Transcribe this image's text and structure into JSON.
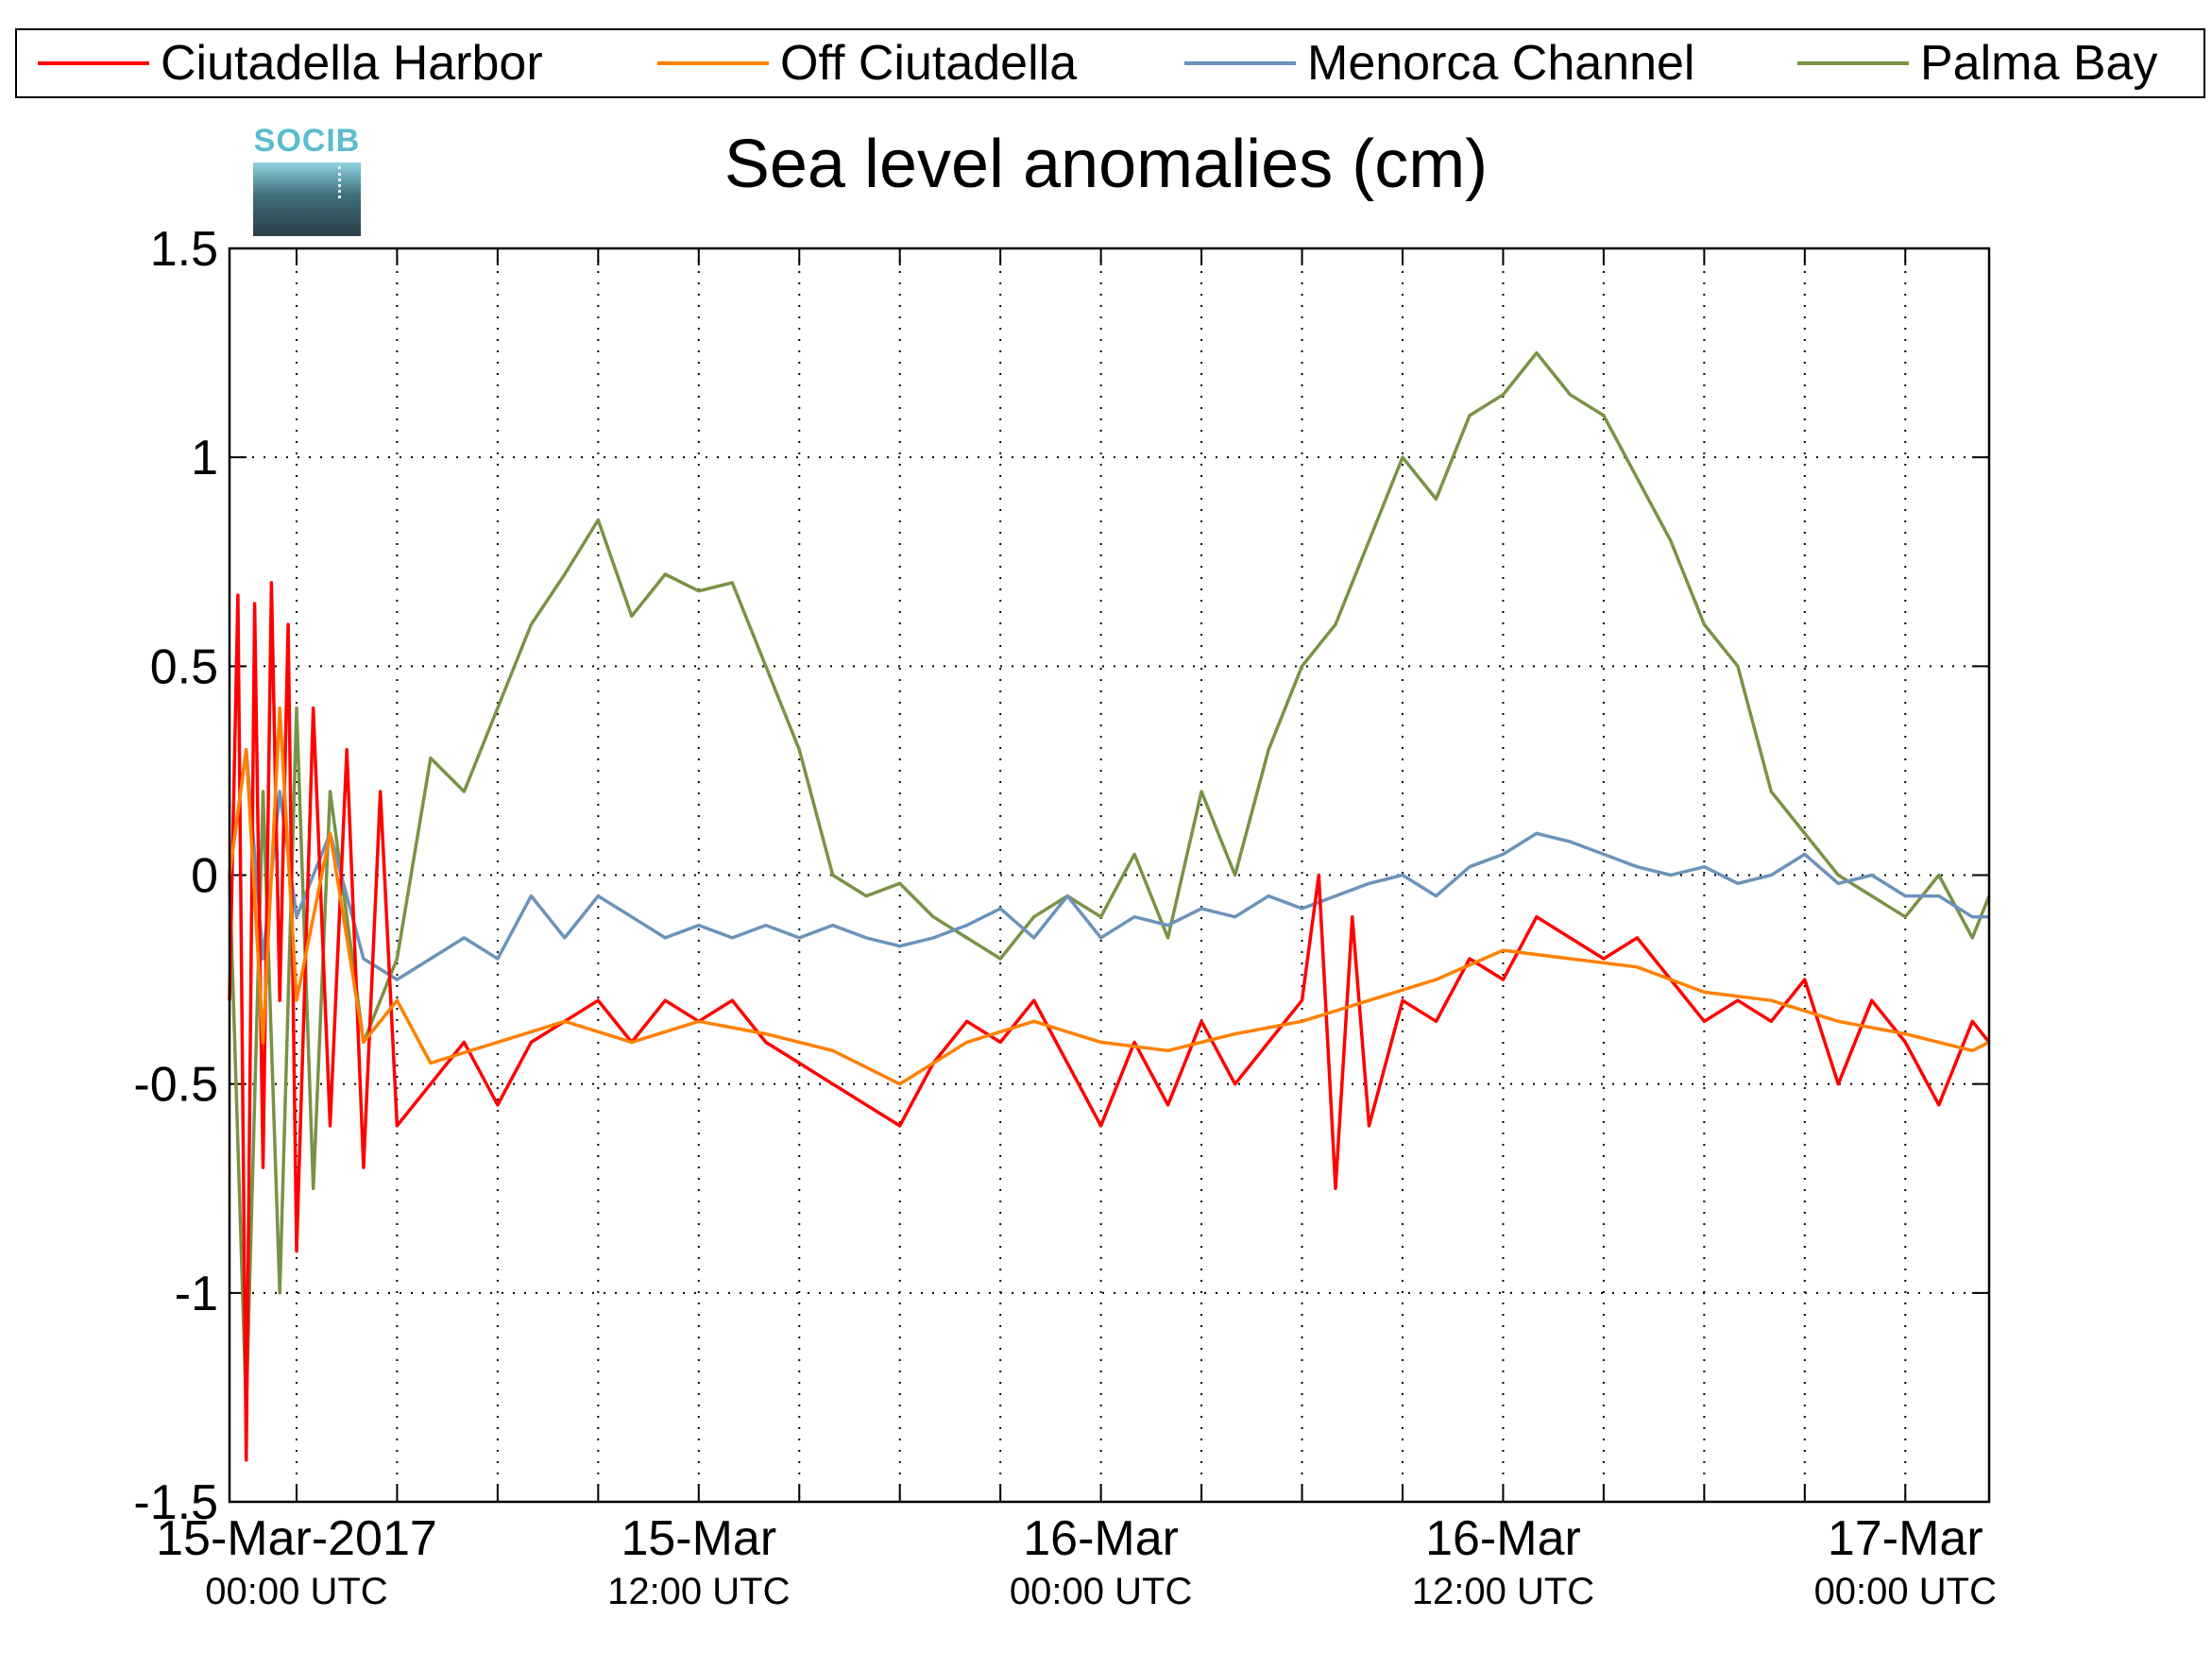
{
  "chart_data": {
    "type": "line",
    "title": "Sea level anomalies (cm)",
    "logo_text": "SOCIB",
    "ylim": [
      -1.5,
      1.5
    ],
    "y_ticks": [
      "1.5",
      "1",
      "0.5",
      "0",
      "-0.5",
      "-1",
      "-1.5"
    ],
    "x_range": [
      "2017-03-14T22:00",
      "2017-03-17T02:30"
    ],
    "x_ticks": [
      {
        "main": "15-Mar-2017",
        "sub": "00:00 UTC"
      },
      {
        "main": "15-Mar",
        "sub": "12:00 UTC"
      },
      {
        "main": "16-Mar",
        "sub": "00:00 UTC"
      },
      {
        "main": "16-Mar",
        "sub": "12:00 UTC"
      },
      {
        "main": "17-Mar",
        "sub": "00:00 UTC"
      }
    ],
    "grid": true,
    "legend_position": "top",
    "series": [
      {
        "name": "Ciutadella Harbor",
        "color": "#ff0000",
        "x": [
          "2017-03-14T22:00",
          "2017-03-14T22:15",
          "2017-03-14T22:30",
          "2017-03-14T22:45",
          "2017-03-14T23:00",
          "2017-03-14T23:15",
          "2017-03-14T23:30",
          "2017-03-14T23:45",
          "2017-03-15T00:00",
          "2017-03-15T00:30",
          "2017-03-15T01:00",
          "2017-03-15T01:30",
          "2017-03-15T02:00",
          "2017-03-15T02:30",
          "2017-03-15T03:00",
          "2017-03-15T04:00",
          "2017-03-15T05:00",
          "2017-03-15T06:00",
          "2017-03-15T07:00",
          "2017-03-15T08:00",
          "2017-03-15T09:00",
          "2017-03-15T10:00",
          "2017-03-15T11:00",
          "2017-03-15T12:00",
          "2017-03-15T13:00",
          "2017-03-15T14:00",
          "2017-03-15T15:00",
          "2017-03-15T16:00",
          "2017-03-15T17:00",
          "2017-03-15T18:00",
          "2017-03-15T19:00",
          "2017-03-15T20:00",
          "2017-03-15T21:00",
          "2017-03-15T22:00",
          "2017-03-15T23:00",
          "2017-03-16T00:00",
          "2017-03-16T01:00",
          "2017-03-16T02:00",
          "2017-03-16T03:00",
          "2017-03-16T04:00",
          "2017-03-16T05:00",
          "2017-03-16T06:00",
          "2017-03-16T06:30",
          "2017-03-16T07:00",
          "2017-03-16T07:30",
          "2017-03-16T08:00",
          "2017-03-16T09:00",
          "2017-03-16T10:00",
          "2017-03-16T11:00",
          "2017-03-16T12:00",
          "2017-03-16T13:00",
          "2017-03-16T14:00",
          "2017-03-16T15:00",
          "2017-03-16T16:00",
          "2017-03-16T17:00",
          "2017-03-16T18:00",
          "2017-03-16T19:00",
          "2017-03-16T20:00",
          "2017-03-16T21:00",
          "2017-03-16T22:00",
          "2017-03-16T23:00",
          "2017-03-17T00:00",
          "2017-03-17T01:00",
          "2017-03-17T02:00",
          "2017-03-17T02:30"
        ],
        "values": [
          -0.3,
          0.67,
          -1.4,
          0.65,
          -0.7,
          0.7,
          -0.3,
          0.6,
          -0.9,
          0.4,
          -0.6,
          0.3,
          -0.7,
          0.2,
          -0.6,
          -0.5,
          -0.4,
          -0.55,
          -0.4,
          -0.35,
          -0.3,
          -0.4,
          -0.3,
          -0.35,
          -0.3,
          -0.4,
          -0.45,
          -0.5,
          -0.55,
          -0.6,
          -0.45,
          -0.35,
          -0.4,
          -0.3,
          -0.45,
          -0.6,
          -0.4,
          -0.55,
          -0.35,
          -0.5,
          -0.4,
          -0.3,
          0.0,
          -0.75,
          -0.1,
          -0.6,
          -0.3,
          -0.35,
          -0.2,
          -0.25,
          -0.1,
          -0.15,
          -0.2,
          -0.15,
          -0.25,
          -0.35,
          -0.3,
          -0.35,
          -0.25,
          -0.5,
          -0.3,
          -0.4,
          -0.55,
          -0.35,
          -0.4
        ]
      },
      {
        "name": "Off Ciutadella",
        "color": "#ff8000",
        "x": [
          "2017-03-14T22:00",
          "2017-03-14T22:30",
          "2017-03-14T23:00",
          "2017-03-14T23:30",
          "2017-03-15T00:00",
          "2017-03-15T01:00",
          "2017-03-15T02:00",
          "2017-03-15T03:00",
          "2017-03-15T04:00",
          "2017-03-15T06:00",
          "2017-03-15T08:00",
          "2017-03-15T10:00",
          "2017-03-15T12:00",
          "2017-03-15T14:00",
          "2017-03-15T16:00",
          "2017-03-15T18:00",
          "2017-03-15T20:00",
          "2017-03-15T22:00",
          "2017-03-16T00:00",
          "2017-03-16T02:00",
          "2017-03-16T04:00",
          "2017-03-16T06:00",
          "2017-03-16T08:00",
          "2017-03-16T10:00",
          "2017-03-16T12:00",
          "2017-03-16T14:00",
          "2017-03-16T16:00",
          "2017-03-16T18:00",
          "2017-03-16T20:00",
          "2017-03-16T22:00",
          "2017-03-17T00:00",
          "2017-03-17T02:00",
          "2017-03-17T02:30"
        ],
        "values": [
          0.0,
          0.3,
          -0.4,
          0.4,
          -0.3,
          0.1,
          -0.4,
          -0.3,
          -0.45,
          -0.4,
          -0.35,
          -0.4,
          -0.35,
          -0.38,
          -0.42,
          -0.5,
          -0.4,
          -0.35,
          -0.4,
          -0.42,
          -0.38,
          -0.35,
          -0.3,
          -0.25,
          -0.18,
          -0.2,
          -0.22,
          -0.28,
          -0.3,
          -0.35,
          -0.38,
          -0.42,
          -0.4
        ]
      },
      {
        "name": "Menorca Channel",
        "color": "#6b93bb",
        "x": [
          "2017-03-14T22:00",
          "2017-03-14T22:30",
          "2017-03-14T23:00",
          "2017-03-14T23:30",
          "2017-03-15T00:00",
          "2017-03-15T01:00",
          "2017-03-15T02:00",
          "2017-03-15T03:00",
          "2017-03-15T04:00",
          "2017-03-15T05:00",
          "2017-03-15T06:00",
          "2017-03-15T07:00",
          "2017-03-15T08:00",
          "2017-03-15T09:00",
          "2017-03-15T10:00",
          "2017-03-15T11:00",
          "2017-03-15T12:00",
          "2017-03-15T13:00",
          "2017-03-15T14:00",
          "2017-03-15T15:00",
          "2017-03-15T16:00",
          "2017-03-15T17:00",
          "2017-03-15T18:00",
          "2017-03-15T19:00",
          "2017-03-15T20:00",
          "2017-03-15T21:00",
          "2017-03-15T22:00",
          "2017-03-15T23:00",
          "2017-03-16T00:00",
          "2017-03-16T01:00",
          "2017-03-16T02:00",
          "2017-03-16T03:00",
          "2017-03-16T04:00",
          "2017-03-16T05:00",
          "2017-03-16T06:00",
          "2017-03-16T07:00",
          "2017-03-16T08:00",
          "2017-03-16T09:00",
          "2017-03-16T10:00",
          "2017-03-16T11:00",
          "2017-03-16T12:00",
          "2017-03-16T13:00",
          "2017-03-16T14:00",
          "2017-03-16T15:00",
          "2017-03-16T16:00",
          "2017-03-16T17:00",
          "2017-03-16T18:00",
          "2017-03-16T19:00",
          "2017-03-16T20:00",
          "2017-03-16T21:00",
          "2017-03-16T22:00",
          "2017-03-16T23:00",
          "2017-03-17T00:00",
          "2017-03-17T01:00",
          "2017-03-17T02:00",
          "2017-03-17T02:30"
        ],
        "values": [
          0.0,
          0.3,
          -0.2,
          0.2,
          -0.1,
          0.1,
          -0.2,
          -0.25,
          -0.2,
          -0.15,
          -0.2,
          -0.05,
          -0.15,
          -0.05,
          -0.1,
          -0.15,
          -0.12,
          -0.15,
          -0.12,
          -0.15,
          -0.12,
          -0.15,
          -0.17,
          -0.15,
          -0.12,
          -0.08,
          -0.15,
          -0.05,
          -0.15,
          -0.1,
          -0.12,
          -0.08,
          -0.1,
          -0.05,
          -0.08,
          -0.05,
          -0.02,
          0.0,
          -0.05,
          0.02,
          0.05,
          0.1,
          0.08,
          0.05,
          0.02,
          0.0,
          0.02,
          -0.02,
          0.0,
          0.05,
          -0.02,
          0.0,
          -0.05,
          -0.05,
          -0.1,
          -0.1
        ]
      },
      {
        "name": "Palma Bay",
        "color": "#7a9245",
        "x": [
          "2017-03-14T22:00",
          "2017-03-14T22:30",
          "2017-03-14T23:00",
          "2017-03-14T23:30",
          "2017-03-15T00:00",
          "2017-03-15T00:30",
          "2017-03-15T01:00",
          "2017-03-15T02:00",
          "2017-03-15T03:00",
          "2017-03-15T04:00",
          "2017-03-15T05:00",
          "2017-03-15T06:00",
          "2017-03-15T07:00",
          "2017-03-15T08:00",
          "2017-03-15T09:00",
          "2017-03-15T10:00",
          "2017-03-15T11:00",
          "2017-03-15T12:00",
          "2017-03-15T13:00",
          "2017-03-15T14:00",
          "2017-03-15T15:00",
          "2017-03-15T16:00",
          "2017-03-15T17:00",
          "2017-03-15T18:00",
          "2017-03-15T19:00",
          "2017-03-15T20:00",
          "2017-03-15T21:00",
          "2017-03-15T22:00",
          "2017-03-15T23:00",
          "2017-03-16T00:00",
          "2017-03-16T01:00",
          "2017-03-16T02:00",
          "2017-03-16T03:00",
          "2017-03-16T04:00",
          "2017-03-16T05:00",
          "2017-03-16T06:00",
          "2017-03-16T07:00",
          "2017-03-16T08:00",
          "2017-03-16T09:00",
          "2017-03-16T10:00",
          "2017-03-16T11:00",
          "2017-03-16T12:00",
          "2017-03-16T13:00",
          "2017-03-16T14:00",
          "2017-03-16T15:00",
          "2017-03-16T16:00",
          "2017-03-16T17:00",
          "2017-03-16T18:00",
          "2017-03-16T19:00",
          "2017-03-16T20:00",
          "2017-03-16T21:00",
          "2017-03-16T22:00",
          "2017-03-16T23:00",
          "2017-03-17T00:00",
          "2017-03-17T01:00",
          "2017-03-17T02:00",
          "2017-03-17T02:30"
        ],
        "values": [
          0.0,
          -1.28,
          0.2,
          -1.0,
          0.4,
          -0.75,
          0.2,
          -0.4,
          -0.2,
          0.28,
          0.2,
          0.4,
          0.6,
          0.72,
          0.85,
          0.62,
          0.72,
          0.68,
          0.7,
          0.5,
          0.3,
          0.0,
          -0.05,
          -0.02,
          -0.1,
          -0.15,
          -0.2,
          -0.1,
          -0.05,
          -0.1,
          0.05,
          -0.15,
          0.2,
          0.0,
          0.3,
          0.5,
          0.6,
          0.8,
          1.0,
          0.9,
          1.1,
          1.15,
          1.25,
          1.15,
          1.1,
          0.95,
          0.8,
          0.6,
          0.5,
          0.2,
          0.1,
          0.0,
          -0.05,
          -0.1,
          0.0,
          -0.15,
          -0.05
        ]
      }
    ]
  }
}
